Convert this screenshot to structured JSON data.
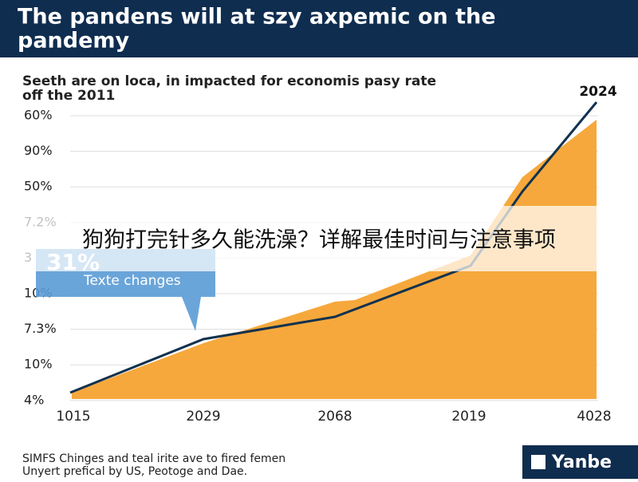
{
  "header": {
    "title_lines": [
      "The pandens will at szy axpemic on the",
      "pandemy"
    ]
  },
  "chart": {
    "subtitle_lines": [
      "Seeth are on loca, in impacted for economis pasy rate",
      "off the 2011"
    ],
    "peak_label": "2024",
    "y_labels": [
      "60%",
      "90%",
      "50%",
      "7.2%",
      "3",
      "10%",
      "7.3%",
      "10%",
      "4%"
    ],
    "x_labels": [
      "1015",
      "2029",
      "2068",
      "2019",
      "4028"
    ]
  },
  "callout": {
    "value": "31%",
    "text": "Texte changes"
  },
  "banner": {
    "text": "狗狗打完针多久能洗澡？详解最佳时间与注意事项"
  },
  "footer": {
    "lines": [
      "SIMFS Chinges and teal irite ave to fired femen",
      "Unyert prefical by US, Peotoge and Dae."
    ]
  },
  "logo": {
    "text": "Yanbe"
  }
}
